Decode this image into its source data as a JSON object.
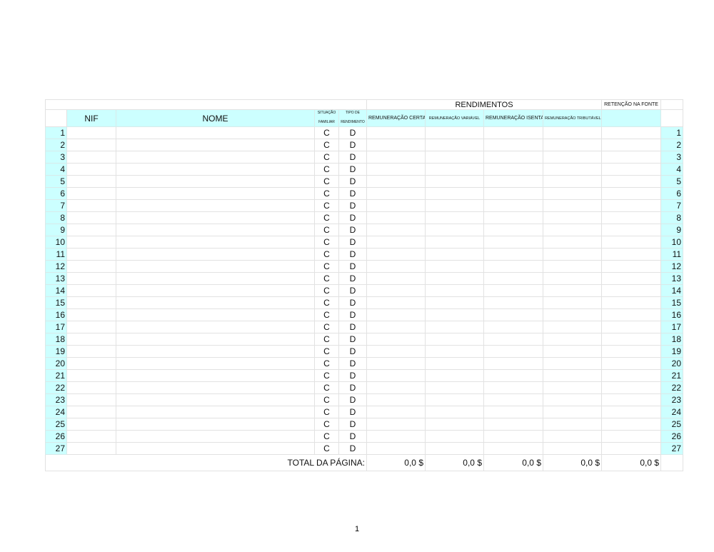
{
  "header": {
    "rendimentos": "RENDIMENTOS",
    "retencao": "RETENÇÃO NA FONTE",
    "nif": "NIF",
    "nome": "NOME",
    "situacao_1": "SITUAÇÃO",
    "situacao_2": "FAMILIAR",
    "tipo_1": "TIPO DE",
    "tipo_2": "RENDIMENTO",
    "rem_certa": "REMUNERAÇÃO CERTA",
    "rem_variavel": "REMUNERAÇÃO VARIÁVEL",
    "rem_isenta": "REMUNERAÇÃO ISENTA",
    "rem_tributavel": "REMUNERAÇÃO TRIBUTÁVEL"
  },
  "rows": [
    {
      "n": "1",
      "sit": "C",
      "tipo": "D"
    },
    {
      "n": "2",
      "sit": "C",
      "tipo": "D"
    },
    {
      "n": "3",
      "sit": "C",
      "tipo": "D"
    },
    {
      "n": "4",
      "sit": "C",
      "tipo": "D"
    },
    {
      "n": "5",
      "sit": "C",
      "tipo": "D"
    },
    {
      "n": "6",
      "sit": "C",
      "tipo": "D"
    },
    {
      "n": "7",
      "sit": "C",
      "tipo": "D"
    },
    {
      "n": "8",
      "sit": "C",
      "tipo": "D"
    },
    {
      "n": "9",
      "sit": "C",
      "tipo": "D"
    },
    {
      "n": "10",
      "sit": "C",
      "tipo": "D"
    },
    {
      "n": "11",
      "sit": "C",
      "tipo": "D"
    },
    {
      "n": "12",
      "sit": "C",
      "tipo": "D"
    },
    {
      "n": "13",
      "sit": "C",
      "tipo": "D"
    },
    {
      "n": "14",
      "sit": "C",
      "tipo": "D"
    },
    {
      "n": "15",
      "sit": "C",
      "tipo": "D"
    },
    {
      "n": "16",
      "sit": "C",
      "tipo": "D"
    },
    {
      "n": "17",
      "sit": "C",
      "tipo": "D"
    },
    {
      "n": "18",
      "sit": "C",
      "tipo": "D"
    },
    {
      "n": "19",
      "sit": "C",
      "tipo": "D"
    },
    {
      "n": "20",
      "sit": "C",
      "tipo": "D"
    },
    {
      "n": "21",
      "sit": "C",
      "tipo": "D"
    },
    {
      "n": "22",
      "sit": "C",
      "tipo": "D"
    },
    {
      "n": "23",
      "sit": "C",
      "tipo": "D"
    },
    {
      "n": "24",
      "sit": "C",
      "tipo": "D"
    },
    {
      "n": "25",
      "sit": "C",
      "tipo": "D"
    },
    {
      "n": "26",
      "sit": "C",
      "tipo": "D"
    },
    {
      "n": "27",
      "sit": "C",
      "tipo": "D"
    }
  ],
  "totals": {
    "label": "TOTAL DA PÁGINA:",
    "values": [
      "0,0 $",
      "0,0 $",
      "0,0 $",
      "0,0 $",
      "0,0 $"
    ]
  },
  "page_number": "1",
  "colors": {
    "header_fill": "#ccffff",
    "grid": "#e2e2e2"
  }
}
